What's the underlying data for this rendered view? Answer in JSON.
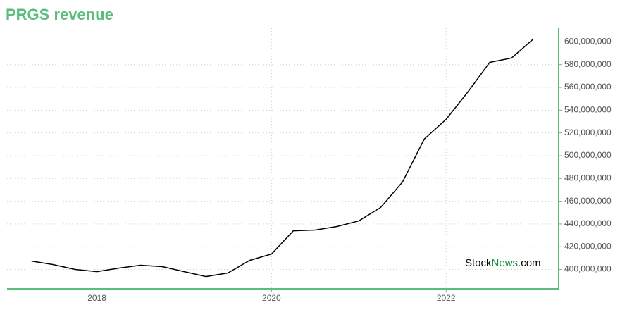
{
  "chart_data": {
    "type": "line",
    "title": "PRGS revenue",
    "x": [
      2017.25,
      2017.5,
      2017.75,
      2018.0,
      2018.25,
      2018.5,
      2018.75,
      2019.0,
      2019.25,
      2019.5,
      2019.75,
      2020.0,
      2020.25,
      2020.5,
      2020.75,
      2021.0,
      2021.25,
      2021.5,
      2021.75,
      2022.0,
      2022.25,
      2022.5,
      2022.75,
      2023.0
    ],
    "series": [
      {
        "name": "PRGS revenue",
        "color": "#000000",
        "values": [
          407400000,
          404300000,
          400000000,
          398100000,
          401200000,
          403700000,
          402500000,
          398100000,
          393800000,
          396900000,
          408000000,
          413600000,
          434000000,
          434700000,
          437800000,
          442700000,
          454500000,
          476800000,
          514600000,
          531900000,
          556000000,
          582000000,
          585800000,
          602500000
        ]
      }
    ],
    "xlim": [
      2016.97,
      2023.29
    ],
    "xticks": [
      2018,
      2020,
      2022
    ],
    "ylim": [
      383000000,
      612000000
    ],
    "yticks": [
      {
        "value": 400000000,
        "label": "400,000,000"
      },
      {
        "value": 420000000,
        "label": "420,000,000"
      },
      {
        "value": 440000000,
        "label": "440,000,000"
      },
      {
        "value": 460000000,
        "label": "460,000,000"
      },
      {
        "value": 480000000,
        "label": "480,000,000"
      },
      {
        "value": 500000000,
        "label": "500,000,000"
      },
      {
        "value": 520000000,
        "label": "520,000,000"
      },
      {
        "value": 540000000,
        "label": "540,000,000"
      },
      {
        "value": 560000000,
        "label": "560,000,000"
      },
      {
        "value": 580000000,
        "label": "580,000,000"
      },
      {
        "value": 600000000,
        "label": "600,000,000"
      }
    ],
    "grid": true,
    "watermark": {
      "part1": "Stock",
      "part2": "News",
      "part3": ".com"
    }
  }
}
